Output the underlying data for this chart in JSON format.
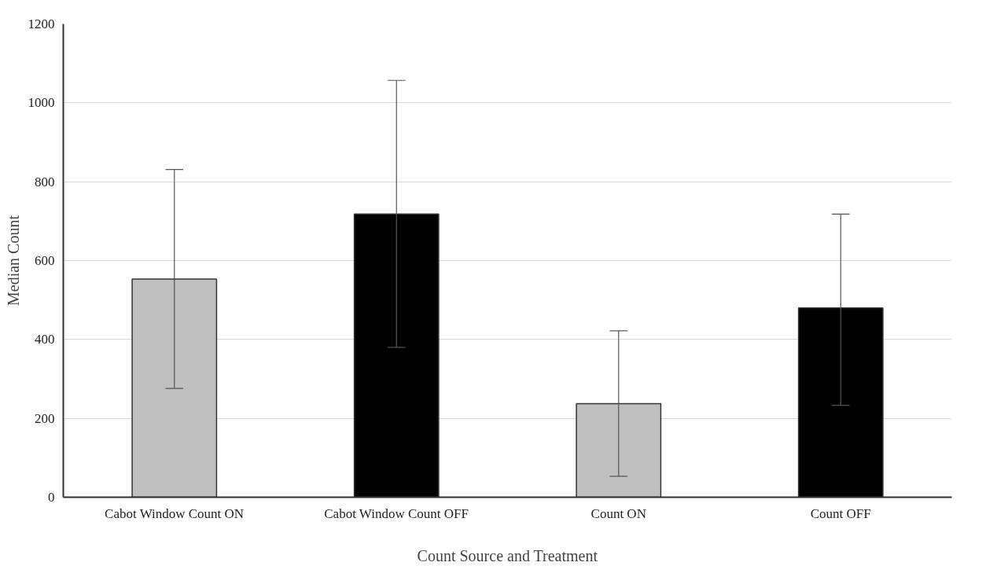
{
  "chart_data": {
    "type": "bar",
    "xlabel": "Count Source and Treatment",
    "ylabel": "Median Count",
    "categories": [
      "Cabot Window Count ON",
      "Cabot Window Count OFF",
      "Count ON",
      "Count OFF"
    ],
    "values": [
      553,
      718,
      237,
      480
    ],
    "colors": [
      "#bfbfbf",
      "#000000",
      "#bfbfbf",
      "#000000"
    ],
    "errors": [
      [
        276,
        831
      ],
      [
        380,
        1057
      ],
      [
        53,
        422
      ],
      [
        233,
        718
      ]
    ],
    "ylim": [
      0,
      1200
    ],
    "yticks": [
      0,
      200,
      400,
      600,
      800,
      1000,
      1200
    ],
    "grid": "y"
  }
}
